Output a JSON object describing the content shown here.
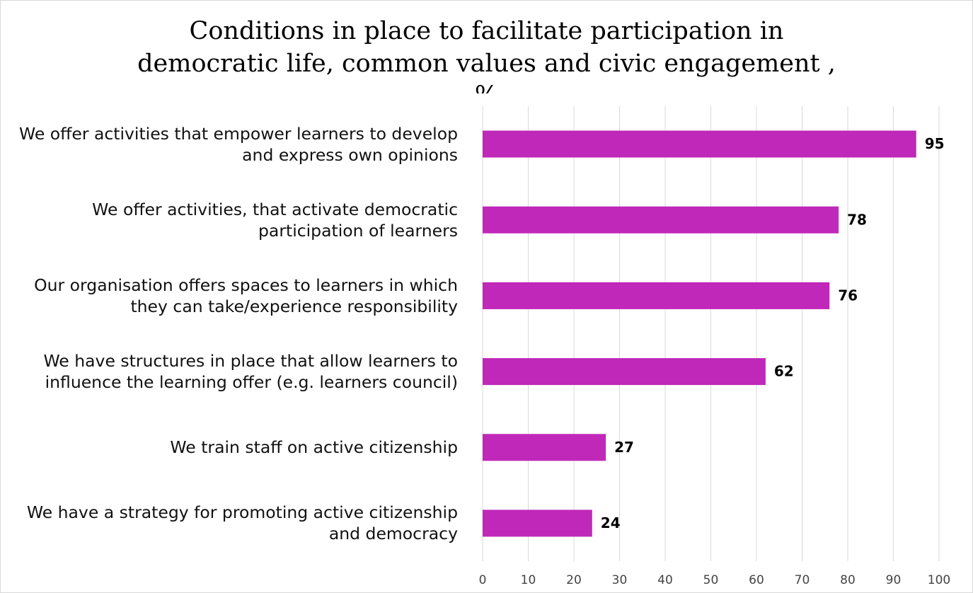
{
  "chart_data": {
    "type": "bar",
    "orientation": "horizontal",
    "title": "Conditions in place to facilitate participation in democratic life, common values and civic engagement , %",
    "categories": [
      "We offer activities that empower learners to develop and express own opinions",
      "We offer activities, that activate democratic participation of learners",
      "Our organisation offers spaces to learners in which they can take/experience responsibility",
      "We have structures in place that allow learners to influence the learning offer (e.g. learners council)",
      "We train staff on active citizenship",
      "We have a strategy for promoting active citizenship and democracy"
    ],
    "values": [
      95,
      78,
      76,
      62,
      27,
      24
    ],
    "color": "#c028b9",
    "xlim": [
      0,
      100
    ],
    "xticks": [
      0,
      10,
      20,
      30,
      40,
      50,
      60,
      70,
      80,
      90,
      100
    ],
    "grid": true
  }
}
